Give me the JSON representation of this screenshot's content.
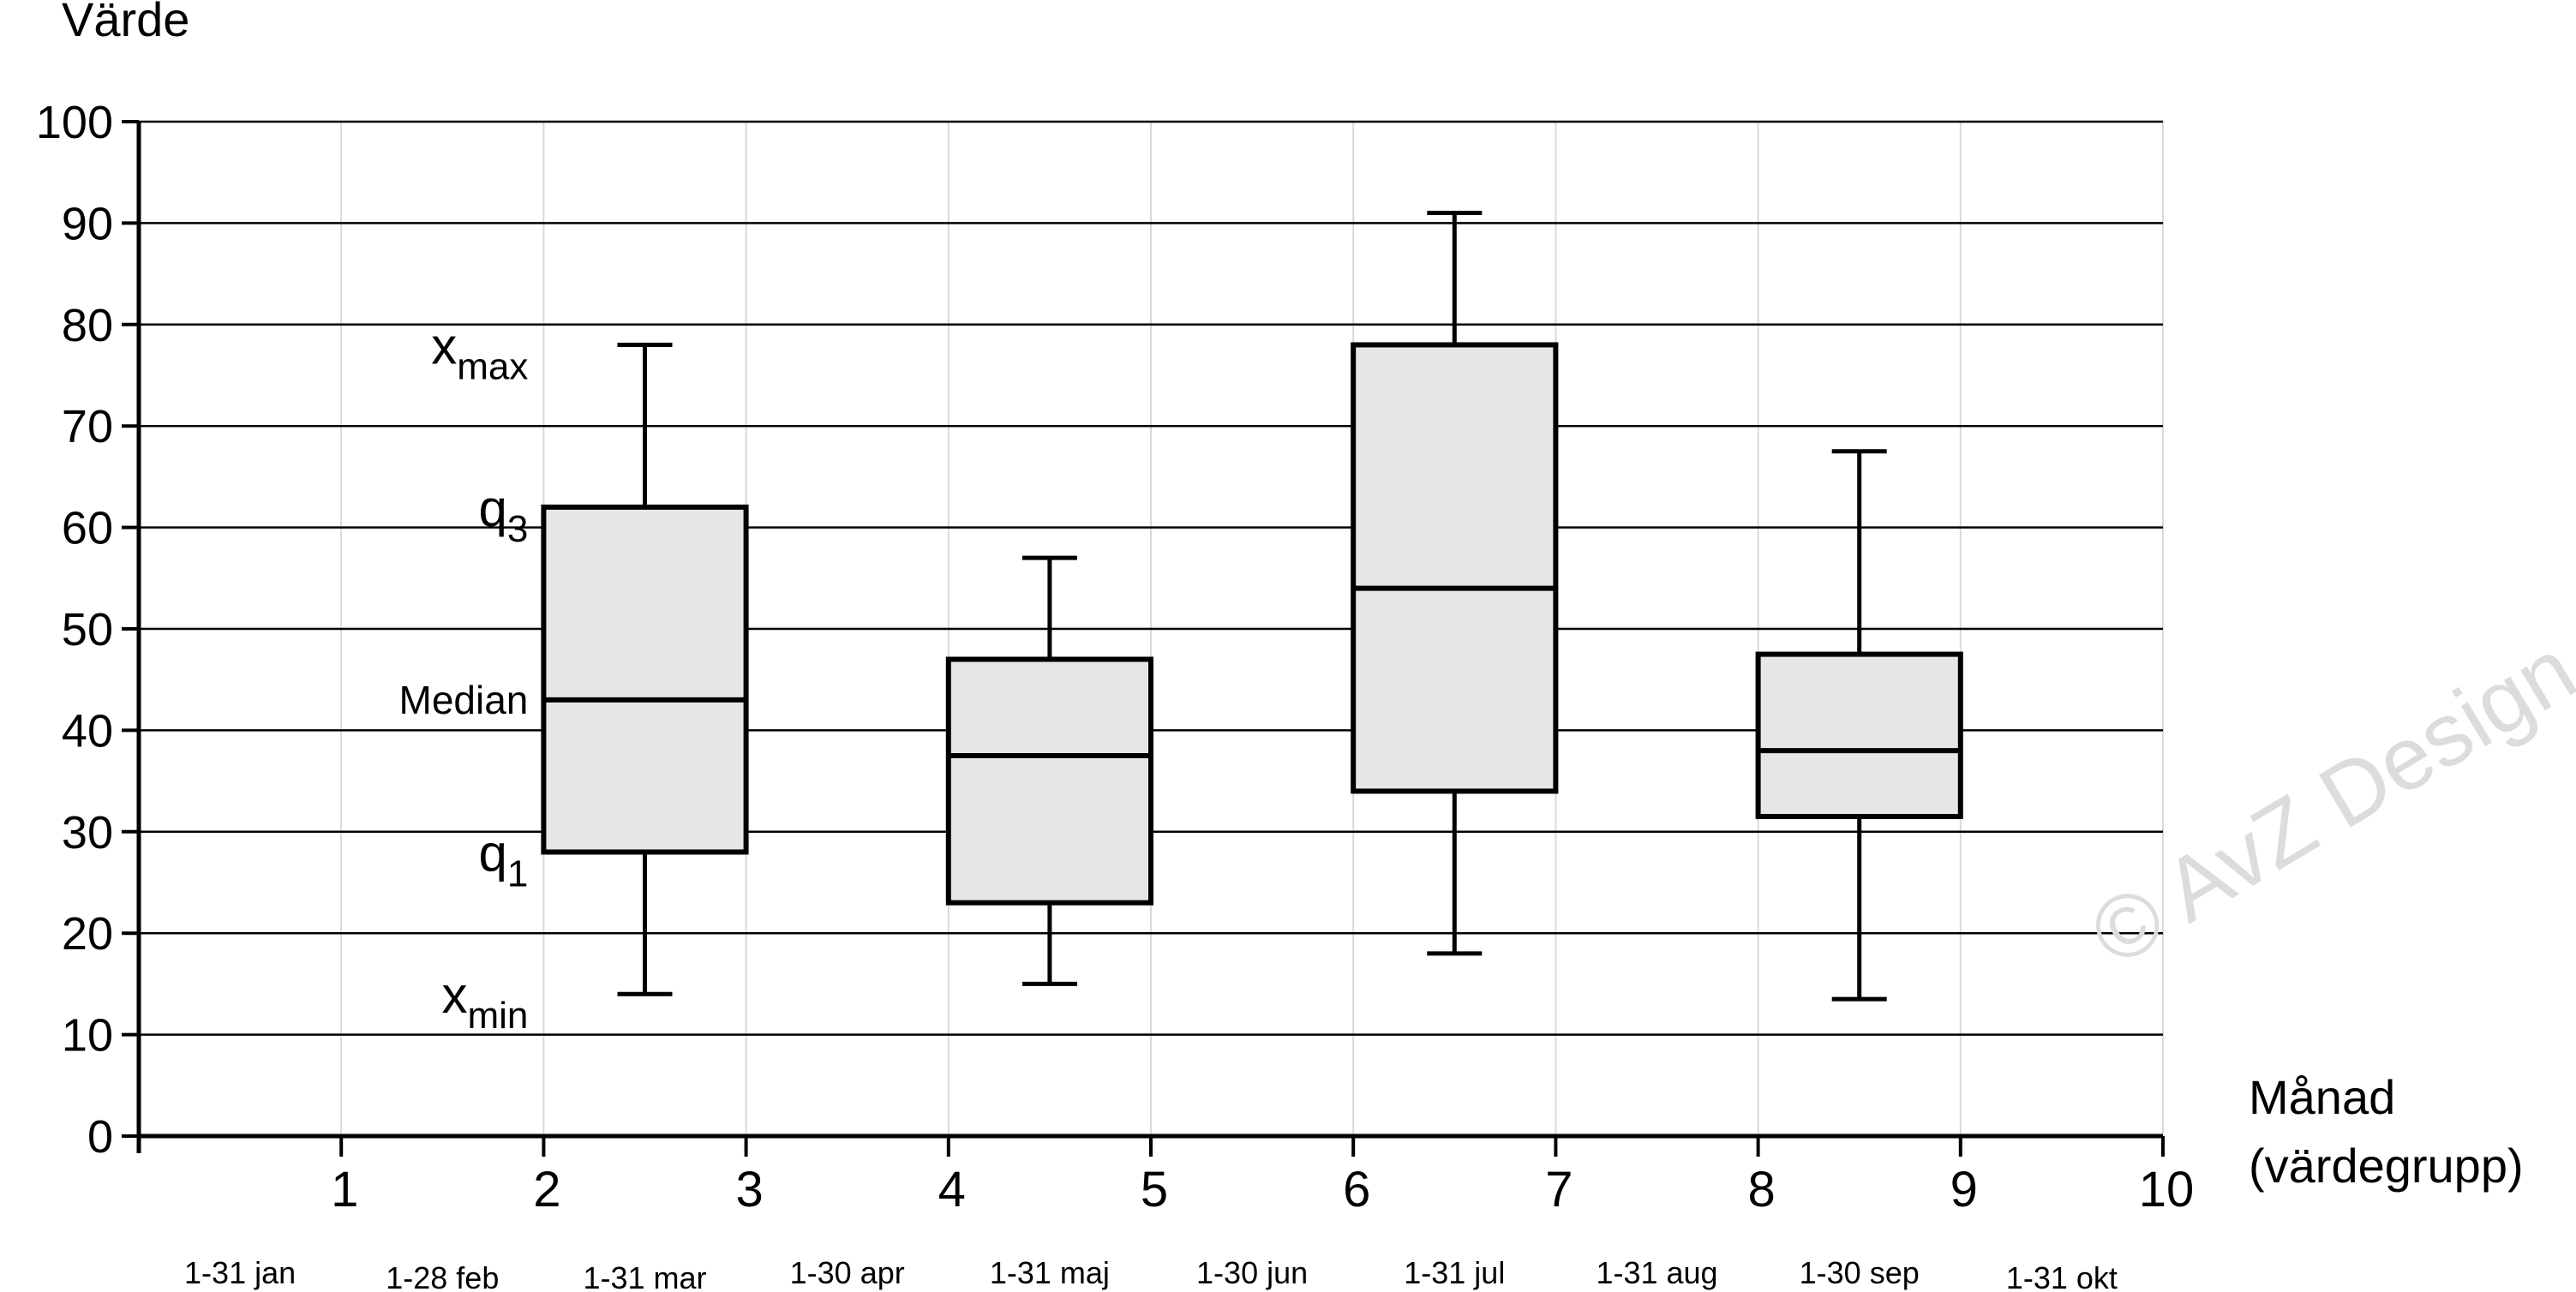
{
  "chart_data": {
    "type": "boxplot",
    "ylabel": "Värde",
    "xlabel_line1": "Månad",
    "xlabel_line2": "(värdegrupp)",
    "ylim": [
      0,
      100
    ],
    "xlim": [
      0,
      10
    ],
    "yticks": [
      0,
      10,
      20,
      30,
      40,
      50,
      60,
      70,
      80,
      90,
      100
    ],
    "xticks": [
      1,
      2,
      3,
      4,
      5,
      6,
      7,
      8,
      9,
      10
    ],
    "month_labels": [
      "1-31 jan",
      "1-28 feb",
      "1-31 mar",
      "1-30 apr",
      "1-31 maj",
      "1-30 jun",
      "1-31 jul",
      "1-31 aug",
      "1-30 sep",
      "1-31 okt"
    ],
    "grid": {
      "horizontal": true,
      "vertical": true
    },
    "boxes": [
      {
        "x0": 2,
        "x1": 3,
        "min": 14,
        "q1": 28,
        "median": 43,
        "q3": 62,
        "max": 78
      },
      {
        "x0": 4,
        "x1": 5,
        "min": 15,
        "q1": 23,
        "median": 37.5,
        "q3": 47,
        "max": 57
      },
      {
        "x0": 6,
        "x1": 7,
        "min": 18,
        "q1": 34,
        "median": 54,
        "q3": 78,
        "max": 91
      },
      {
        "x0": 8,
        "x1": 9,
        "min": 13.5,
        "q1": 31.5,
        "median": 38,
        "q3": 47.5,
        "max": 67.5
      }
    ],
    "annotations": [
      {
        "base": "x",
        "sub": "max",
        "y": 78
      },
      {
        "base": "q",
        "sub": "3",
        "y": 62
      },
      {
        "base": "Median",
        "sub": "",
        "y": 43
      },
      {
        "base": "q",
        "sub": "1",
        "y": 28
      },
      {
        "base": "x",
        "sub": "min",
        "y": 14
      }
    ],
    "box_fill": "#e6e6e6",
    "line_color": "#000000",
    "grid_color": "#d9d9d9"
  },
  "watermark": "© AvZ Design"
}
